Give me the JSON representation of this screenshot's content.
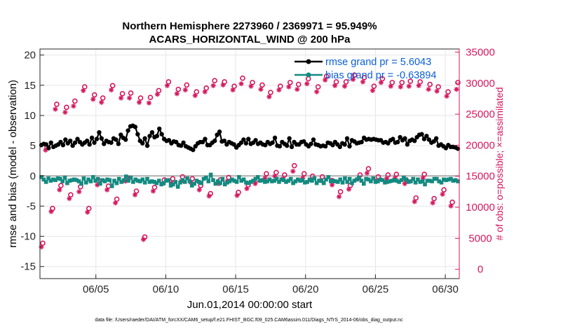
{
  "chart_data": {
    "type": "line",
    "title": "Northern Hemisphere 2273960 / 2369971 = 95.949%",
    "subtitle": "ACARS_HORIZONTAL_WIND @ 200 hPa",
    "xlabel": "Jun.01,2014 00:00:00 start",
    "ylabel": "rmse and bias (model - observation)",
    "ylabel_right": "# of obs: o=possible; ×=assimilated",
    "xlim": [
      1,
      31
    ],
    "ylim": [
      -17,
      21
    ],
    "ylim_right": [
      -1500,
      35500
    ],
    "xticks": [
      5,
      10,
      15,
      20,
      25,
      30
    ],
    "xtick_labels": [
      "06/05",
      "06/10",
      "06/15",
      "06/20",
      "06/25",
      "06/30"
    ],
    "yticks": [
      -15,
      -10,
      -5,
      0,
      5,
      10,
      15,
      20
    ],
    "ytick_labels": [
      "-15",
      "-10",
      "-5",
      "0",
      "5",
      "10",
      "15",
      "20"
    ],
    "yticks_right": [
      0,
      5000,
      10000,
      15000,
      20000,
      25000,
      30000,
      35000
    ],
    "ytick_labels_right": [
      "0",
      "5000",
      "10000",
      "15000",
      "20000",
      "25000",
      "30000",
      "35000"
    ],
    "grid": true,
    "legend_position": "top-right",
    "legend": [
      "rmse grand pr = 5.6043",
      "bias grand pr = -0.63894"
    ],
    "footnote": "data file: /Users/raeder/DAI/ATM_forcXX/CAM6_setup/f.e21.FHIST_BGC.f09_025.CAM6assim.011/Diags_NTrS_2014-06/obs_diag_output.nc",
    "series": [
      {
        "name": "rmse",
        "color": "#000000",
        "axis": "left",
        "y": [
          5.1,
          5.3,
          5.2,
          4.6,
          5.5,
          4.8,
          5.0,
          5.2,
          5.6,
          5.1,
          6.0,
          5.4,
          5.8,
          5.0,
          5.5,
          6.1,
          5.6,
          5.2,
          5.5,
          5.8,
          5.2,
          6.3,
          5.5,
          6.1,
          7.2,
          6.2,
          5.3,
          5.8,
          5.6,
          5.5,
          6.2,
          6.0,
          5.3,
          6.8,
          6.3,
          6.0,
          7.5,
          8.2,
          8.3,
          8.1,
          6.9,
          5.8,
          5.4,
          6.2,
          5.0,
          6.6,
          7.2,
          6.4,
          6.6,
          7.8,
          6.9,
          6.1,
          5.8,
          5.9,
          5.4,
          5.7,
          5.6,
          5.1,
          5.0,
          5.5,
          4.9,
          4.7,
          4.5,
          4.3,
          4.9,
          5.4,
          5.6,
          5.6,
          6.1,
          5.1,
          5.1,
          5.5,
          5.8,
          6.8,
          7.3,
          5.7,
          5.8,
          5.2,
          5.6,
          5.4,
          5.2,
          4.7,
          5.1,
          5.5,
          6.0,
          5.4,
          6.1,
          5.3,
          5.5,
          5.9,
          5.3,
          5.5,
          5.2,
          5.1,
          5.6,
          5.3,
          5.5,
          6.3,
          5.0,
          4.9,
          5.6,
          5.3,
          5.0,
          6.2,
          4.8,
          5.6,
          5.2,
          5.2,
          5.6,
          5.7,
          5.2,
          4.9,
          5.3,
          6.0,
          5.2,
          5.1,
          4.9,
          5.0,
          4.9,
          5.5,
          5.4,
          5.1,
          5.6,
          5.2,
          4.8,
          5.4,
          5.2,
          6.2,
          4.9,
          5.9,
          5.7,
          5.4,
          5.5,
          5.6,
          6.3,
          6.0,
          6.1,
          6.0,
          6.1,
          6.0,
          5.9,
          5.9,
          5.5,
          5.6,
          5.4,
          5.9,
          6.1,
          5.5,
          5.6,
          6.4,
          5.9,
          6.2,
          5.2,
          5.8,
          6.0,
          5.8,
          6.4,
          6.8,
          6.9,
          6.1,
          6.6,
          6.0,
          5.5,
          5.7,
          6.2,
          5.0,
          5.2,
          4.9,
          4.6,
          5.1,
          4.8,
          4.8,
          4.7,
          4.5
        ]
      },
      {
        "name": "bias",
        "color": "#138a80",
        "axis": "left",
        "y": [
          -0.2,
          -0.6,
          -1.0,
          -0.4,
          -0.8,
          -0.6,
          -0.7,
          -0.4,
          -0.5,
          -0.9,
          -0.3,
          -1.2,
          -0.8,
          -0.7,
          -0.6,
          -0.7,
          -0.9,
          -1.3,
          -0.4,
          -1.1,
          -0.6,
          -0.9,
          -0.2,
          -0.8,
          -0.5,
          -1.3,
          -0.7,
          -0.9,
          -0.6,
          -0.7,
          -1.7,
          -0.8,
          -1.2,
          -0.5,
          -1.0,
          -0.7,
          -0.1,
          -0.8,
          -0.3,
          -1.0,
          -0.6,
          -0.8,
          -0.9,
          -0.6,
          -1.1,
          -0.5,
          -1.0,
          -0.9,
          -1.0,
          -1.2,
          -0.8,
          -1.4,
          -1.2,
          -0.8,
          -0.7,
          -1.6,
          -1.4,
          -1.0,
          -1.8,
          -1.1,
          -0.7,
          -1.0,
          -0.4,
          -0.9,
          -1.6,
          -1.3,
          -0.8,
          -1.0,
          -1.2,
          -0.5,
          -0.3,
          -0.9,
          0.2,
          -0.7,
          -1.3,
          -0.9,
          -1.2,
          -0.5,
          -1.4,
          -1.1,
          -0.9,
          -0.6,
          -0.8,
          -1.0,
          -0.2,
          -0.8,
          -0.6,
          -1.1,
          -1.2,
          -1.0,
          -0.8,
          -0.5,
          -0.2,
          -0.8,
          -0.7,
          -1.0,
          -0.9,
          -0.6,
          -0.9,
          -0.8,
          -0.5,
          -1.0,
          -0.6,
          -0.7,
          -1.0,
          -0.8,
          -0.5,
          -1.2,
          -0.9,
          -0.6,
          -0.8,
          -0.7,
          -1.1,
          -1.0,
          -0.6,
          -0.8,
          -0.4,
          -1.2,
          -0.8,
          -0.8,
          -1.2,
          -0.6,
          -0.2,
          -0.9,
          -0.8,
          -0.9,
          -1.0,
          -0.6,
          -1.1,
          -0.4,
          -1.0,
          -0.5,
          -1.2,
          -0.8,
          -0.6,
          -0.3,
          -0.8,
          -1.3,
          -0.5,
          -0.6,
          -0.9,
          -0.4,
          -1.0,
          -0.9,
          -0.6,
          -0.7,
          -1.1,
          -1.0,
          -0.9,
          -0.8,
          -0.7,
          -0.8,
          -1.0,
          -0.7,
          -0.3,
          -0.6,
          -1.0,
          -0.9,
          -0.5,
          -1.1,
          -0.6,
          -1.0,
          -0.9,
          -1.4,
          -0.8,
          -0.8,
          -0.9,
          -0.5,
          -0.5,
          -0.9,
          -1.1,
          -0.6,
          -0.7,
          -0.6,
          -0.5,
          -0.8,
          -0.7,
          -0.9
        ]
      },
      {
        "name": "possible",
        "color": "#d6175d",
        "axis": "right",
        "marker": "o",
        "x": [
          1.2,
          1.5,
          1.9,
          2.2,
          2.5,
          2.9,
          3.2,
          3.5,
          3.9,
          4.2,
          4.5,
          4.9,
          5.2,
          5.5,
          5.9,
          6.2,
          6.5,
          6.9,
          7.2,
          7.5,
          7.9,
          8.2,
          8.5,
          8.9,
          9.2,
          9.5,
          9.9,
          10.2,
          10.5,
          10.9,
          11.2,
          11.5,
          11.9,
          12.2,
          12.5,
          12.9,
          13.2,
          13.5,
          13.9,
          14.2,
          14.5,
          14.9,
          15.2,
          15.5,
          15.9,
          16.2,
          16.5,
          16.9,
          17.2,
          17.5,
          17.9,
          18.2,
          18.5,
          18.9,
          19.2,
          19.5,
          19.9,
          20.2,
          20.5,
          20.9,
          21.2,
          21.5,
          21.9,
          22.2,
          22.5,
          22.9,
          23.2,
          23.5,
          23.9,
          24.2,
          24.5,
          24.9,
          25.2,
          25.5,
          25.9,
          26.2,
          26.5,
          26.9,
          27.2,
          27.5,
          27.9,
          28.2,
          28.5,
          28.9,
          29.2,
          29.5,
          29.9,
          30.2,
          30.5,
          30.9
        ],
        "y": [
          4200,
          19700,
          9800,
          26600,
          13500,
          26100,
          12000,
          27100,
          13300,
          29400,
          9800,
          28100,
          14300,
          27600,
          13400,
          29600,
          11300,
          28300,
          14800,
          28400,
          12600,
          27600,
          5200,
          27700,
          13200,
          28800,
          14400,
          30200,
          14600,
          29000,
          14900,
          29700,
          14600,
          28600,
          13500,
          29200,
          12200,
          30400,
          14400,
          30200,
          14800,
          29500,
          12400,
          30800,
          13600,
          30100,
          14400,
          29700,
          15400,
          28500,
          15600,
          29500,
          15200,
          30100,
          16700,
          29800,
          15400,
          30700,
          15000,
          29400,
          14900,
          31100,
          14300,
          30200,
          12500,
          30200,
          13500,
          31300,
          15200,
          30900,
          16200,
          29500,
          14900,
          30700,
          15200,
          30100,
          15300,
          30100,
          14400,
          30300,
          11500,
          30200,
          15300,
          29800,
          11400,
          29400,
          12800,
          28600,
          10800,
          30100
        ]
      },
      {
        "name": "assimilated",
        "color": "#d6175d",
        "axis": "right",
        "marker": "x",
        "x": [
          1.1,
          1.4,
          1.8,
          2.1,
          2.4,
          2.8,
          3.1,
          3.4,
          3.8,
          4.1,
          4.4,
          4.8,
          5.1,
          5.4,
          5.8,
          6.1,
          6.4,
          6.8,
          7.1,
          7.4,
          7.8,
          8.1,
          8.4,
          8.8,
          9.1,
          9.4,
          9.8,
          10.1,
          10.4,
          10.8,
          11.1,
          11.4,
          11.8,
          12.1,
          12.4,
          12.8,
          13.1,
          13.4,
          13.8,
          14.1,
          14.4,
          14.8,
          15.1,
          15.4,
          15.8,
          16.1,
          16.4,
          16.8,
          17.1,
          17.4,
          17.8,
          18.1,
          18.4,
          18.8,
          19.1,
          19.4,
          19.8,
          20.1,
          20.4,
          20.8,
          21.1,
          21.4,
          21.9,
          22.1,
          22.4,
          22.8,
          23.1,
          23.4,
          23.8,
          24.1,
          24.4,
          24.8,
          25.1,
          25.4,
          25.8,
          26.1,
          26.4,
          26.8,
          27.1,
          27.4,
          27.8,
          28.1,
          28.4,
          28.8,
          29.1,
          29.4,
          29.8,
          30.1,
          30.4,
          30.8
        ],
        "y": [
          3600,
          19200,
          9300,
          25800,
          12800,
          25300,
          11400,
          26300,
          12500,
          28800,
          9200,
          27400,
          13600,
          26900,
          12800,
          28900,
          10700,
          27600,
          14200,
          27600,
          12000,
          26900,
          4800,
          26800,
          12600,
          28200,
          13800,
          29600,
          13900,
          28300,
          14200,
          28900,
          14000,
          28000,
          12800,
          28600,
          11800,
          29600,
          13800,
          29700,
          14200,
          28900,
          11900,
          29900,
          13000,
          29500,
          13800,
          29000,
          14700,
          27800,
          15000,
          28900,
          14600,
          29400,
          15800,
          29000,
          14700,
          29900,
          14400,
          28600,
          14300,
          30500,
          13600,
          29600,
          11700,
          29500,
          12900,
          30600,
          14600,
          30200,
          15500,
          28800,
          14300,
          30100,
          14600,
          29500,
          14700,
          29400,
          13800,
          29500,
          10900,
          29600,
          14700,
          29000,
          10700,
          28700,
          12100,
          27900,
          10200,
          29000
        ]
      }
    ]
  }
}
